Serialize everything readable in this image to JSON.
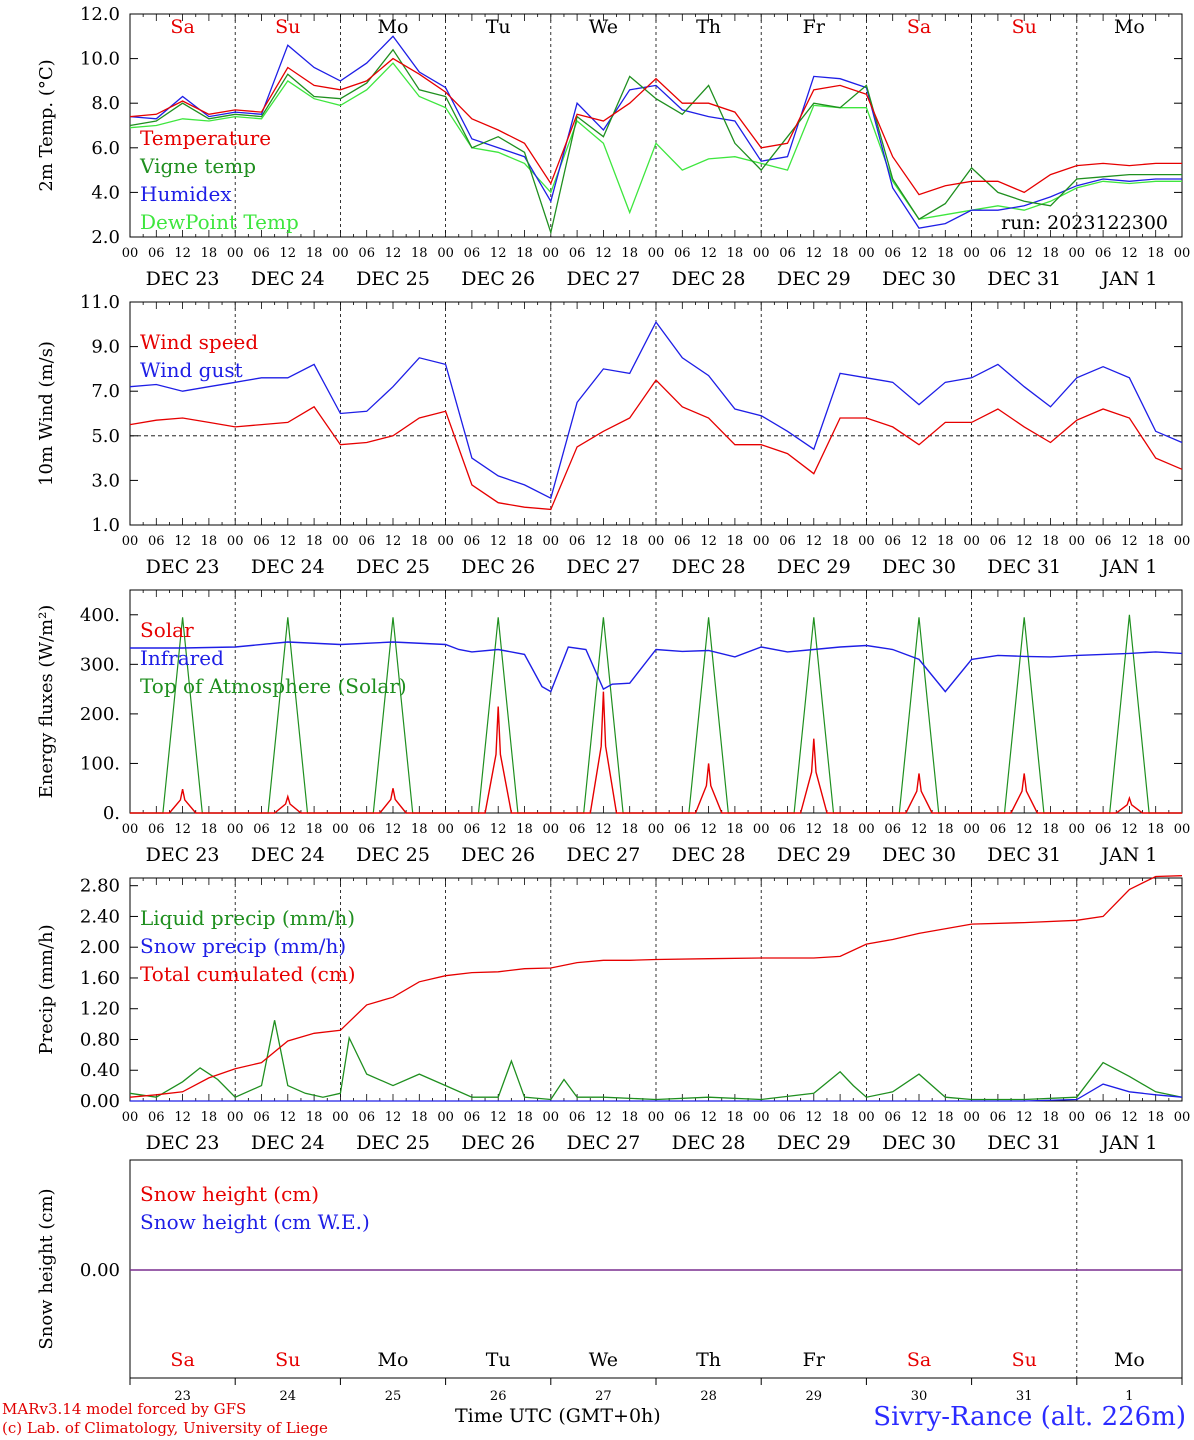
{
  "colors": {
    "red": "#e60000",
    "green": "#1f8f1f",
    "blue": "#1e1ee6",
    "lightgreen": "#3ee63e",
    "purple": "#7a2f8f"
  },
  "x_axis": {
    "hour_ticks": [
      "00",
      "06",
      "12",
      "18"
    ],
    "final_tick": "00",
    "dates": [
      "DEC 23",
      "DEC 24",
      "DEC 25",
      "DEC 26",
      "DEC 27",
      "DEC 28",
      "DEC 29",
      "DEC 30",
      "DEC 31",
      "JAN  1"
    ],
    "weekdays": [
      "Sa",
      "Su",
      "Mo",
      "Tu",
      "We",
      "Th",
      "Fr",
      "Sa",
      "Su",
      "Mo"
    ],
    "weekday_colors": [
      "red",
      "red",
      "black",
      "black",
      "black",
      "black",
      "black",
      "red",
      "red",
      "black"
    ],
    "day_numbers": [
      "23",
      "24",
      "25",
      "26",
      "27",
      "28",
      "29",
      "30",
      "31",
      "1"
    ]
  },
  "footer": {
    "credit_line1": "MARv3.14 model forced by GFS",
    "credit_line2": "(c) Lab. of Climatology, University of Liege",
    "time_label": "Time UTC (GMT+0h)",
    "station": "Sivry-Rance (alt. 226m)"
  },
  "chart_data": [
    {
      "type": "line",
      "ylabel": "2m Temp. (°C)",
      "ylim": [
        2.0,
        12.0
      ],
      "yticks": [
        "2.0",
        "4.0",
        "6.0",
        "8.0",
        "10.0",
        "12.0"
      ],
      "annotation": "run: 2023122300",
      "x_unit": "hours since DEC 23 00 UTC",
      "series": [
        {
          "name": "Temperature",
          "color": "red",
          "x": [
            0,
            6,
            12,
            18,
            24,
            30,
            36,
            42,
            48,
            54,
            60,
            66,
            72,
            78,
            84,
            90,
            96,
            102,
            108,
            114,
            120,
            126,
            132,
            138,
            144,
            150,
            156,
            162,
            168,
            174,
            180,
            186,
            192,
            198,
            204,
            210,
            216,
            222,
            228,
            234,
            240
          ],
          "values": [
            7.4,
            7.5,
            8.1,
            7.5,
            7.7,
            7.6,
            9.6,
            8.8,
            8.6,
            9.0,
            10.0,
            9.3,
            8.5,
            7.3,
            6.8,
            6.2,
            4.4,
            7.5,
            7.2,
            8.0,
            9.1,
            8.0,
            8.0,
            7.6,
            6.0,
            6.2,
            8.6,
            8.8,
            8.4,
            5.6,
            3.9,
            4.3,
            4.5,
            4.5,
            4.0,
            4.8,
            5.2,
            5.3,
            5.2,
            5.3,
            5.3
          ]
        },
        {
          "name": "Vigne temp",
          "color": "green",
          "x": [
            0,
            6,
            12,
            18,
            24,
            30,
            36,
            42,
            48,
            54,
            60,
            66,
            72,
            78,
            84,
            90,
            96,
            102,
            108,
            114,
            120,
            126,
            132,
            138,
            144,
            150,
            156,
            162,
            168,
            174,
            180,
            186,
            192,
            198,
            204,
            210,
            216,
            222,
            228,
            234,
            240
          ],
          "values": [
            7.0,
            7.2,
            8.0,
            7.3,
            7.5,
            7.4,
            9.3,
            8.3,
            8.2,
            8.9,
            10.4,
            8.6,
            8.3,
            6.0,
            6.5,
            5.8,
            2.2,
            7.4,
            6.5,
            9.2,
            8.2,
            7.5,
            8.8,
            6.2,
            5.0,
            6.5,
            8.0,
            7.8,
            8.8,
            4.6,
            2.8,
            3.5,
            5.1,
            4.0,
            3.6,
            3.4,
            4.6,
            4.7,
            4.8,
            4.8,
            4.8
          ]
        },
        {
          "name": "Humidex",
          "color": "blue",
          "x": [
            0,
            6,
            12,
            18,
            24,
            30,
            36,
            42,
            48,
            54,
            60,
            66,
            72,
            78,
            84,
            90,
            96,
            102,
            108,
            114,
            120,
            126,
            132,
            138,
            144,
            150,
            156,
            162,
            168,
            174,
            180,
            186,
            192,
            198,
            204,
            210,
            216,
            222,
            228,
            234,
            240
          ],
          "values": [
            7.4,
            7.3,
            8.3,
            7.4,
            7.6,
            7.5,
            10.6,
            9.6,
            9.0,
            9.8,
            11.0,
            9.4,
            8.7,
            6.4,
            6.0,
            5.6,
            3.6,
            8.0,
            6.8,
            8.6,
            8.8,
            7.7,
            7.4,
            7.2,
            5.4,
            5.6,
            9.2,
            9.1,
            8.7,
            4.2,
            2.4,
            2.6,
            3.2,
            3.2,
            3.4,
            3.8,
            4.3,
            4.6,
            4.5,
            4.6,
            4.6
          ]
        },
        {
          "name": "DewPoint Temp",
          "color": "lightgreen",
          "x": [
            0,
            6,
            12,
            18,
            24,
            30,
            36,
            42,
            48,
            54,
            60,
            66,
            72,
            78,
            84,
            90,
            96,
            102,
            108,
            114,
            120,
            126,
            132,
            138,
            144,
            150,
            156,
            162,
            168,
            174,
            180,
            186,
            192,
            198,
            204,
            210,
            216,
            222,
            228,
            234,
            240
          ],
          "values": [
            6.9,
            7.0,
            7.3,
            7.2,
            7.4,
            7.3,
            9.0,
            8.2,
            7.9,
            8.6,
            9.8,
            8.3,
            7.8,
            6.0,
            5.8,
            5.3,
            4.0,
            7.2,
            6.2,
            3.1,
            6.2,
            5.0,
            5.5,
            5.6,
            5.3,
            5.0,
            7.9,
            7.8,
            7.8,
            4.5,
            2.8,
            3.0,
            3.2,
            3.4,
            3.2,
            3.6,
            4.2,
            4.5,
            4.4,
            4.5,
            4.5
          ]
        }
      ]
    },
    {
      "type": "line",
      "ylabel": "10m Wind (m/s)",
      "ylim": [
        1.0,
        11.0
      ],
      "yticks": [
        "1.0",
        "3.0",
        "5.0",
        "7.0",
        "9.0",
        "11.0"
      ],
      "reference_line": 5.0,
      "x_unit": "hours since DEC 23 00 UTC",
      "series": [
        {
          "name": "Wind speed",
          "color": "red",
          "x": [
            0,
            6,
            12,
            18,
            24,
            30,
            36,
            42,
            48,
            54,
            60,
            66,
            72,
            78,
            84,
            90,
            96,
            102,
            108,
            114,
            120,
            126,
            132,
            138,
            144,
            150,
            156,
            162,
            168,
            174,
            180,
            186,
            192,
            198,
            204,
            210,
            216,
            222,
            228,
            234,
            240
          ],
          "values": [
            5.5,
            5.7,
            5.8,
            5.6,
            5.4,
            5.5,
            5.6,
            6.3,
            4.6,
            4.7,
            5.0,
            5.8,
            6.1,
            2.8,
            2.0,
            1.8,
            1.7,
            4.5,
            5.2,
            5.8,
            7.5,
            6.3,
            5.8,
            4.6,
            4.6,
            4.2,
            3.3,
            5.8,
            5.8,
            5.4,
            4.6,
            5.6,
            5.6,
            6.2,
            5.4,
            4.7,
            5.7,
            6.2,
            5.8,
            4.0,
            3.5
          ]
        },
        {
          "name": "Wind gust",
          "color": "blue",
          "x": [
            0,
            6,
            12,
            18,
            24,
            30,
            36,
            42,
            48,
            54,
            60,
            66,
            72,
            78,
            84,
            90,
            96,
            102,
            108,
            114,
            120,
            126,
            132,
            138,
            144,
            150,
            156,
            162,
            168,
            174,
            180,
            186,
            192,
            198,
            204,
            210,
            216,
            222,
            228,
            234,
            240
          ],
          "values": [
            7.2,
            7.3,
            7.0,
            7.2,
            7.4,
            7.6,
            7.6,
            8.2,
            6.0,
            6.1,
            7.2,
            8.5,
            8.2,
            4.0,
            3.2,
            2.8,
            2.2,
            6.5,
            8.0,
            7.8,
            10.1,
            8.5,
            7.7,
            6.2,
            5.9,
            5.2,
            4.4,
            7.8,
            7.6,
            7.4,
            6.4,
            7.4,
            7.6,
            8.2,
            7.2,
            6.3,
            7.6,
            8.1,
            7.6,
            5.2,
            4.7
          ]
        }
      ]
    },
    {
      "type": "line",
      "ylabel": "Energy fluxes (W/m²)",
      "ylim": [
        0,
        450
      ],
      "yticks": [
        "0.",
        "100.",
        "200.",
        "300.",
        "400."
      ],
      "x_unit": "hours since DEC 23 00 UTC",
      "series": [
        {
          "name": "Solar",
          "color": "red",
          "daily_peak": [
            48,
            33,
            50,
            215,
            245,
            100,
            150,
            80,
            80,
            30
          ]
        },
        {
          "name": "Infrared",
          "color": "blue",
          "x": [
            0,
            12,
            24,
            36,
            48,
            60,
            72,
            75,
            78,
            84,
            90,
            94,
            96,
            100,
            104,
            108,
            110,
            114,
            120,
            126,
            132,
            138,
            144,
            150,
            156,
            162,
            168,
            174,
            180,
            186,
            192,
            198,
            204,
            210,
            216,
            222,
            228,
            234,
            240
          ],
          "values": [
            333,
            333,
            335,
            345,
            340,
            345,
            340,
            330,
            325,
            330,
            320,
            255,
            245,
            335,
            330,
            250,
            260,
            262,
            330,
            326,
            328,
            315,
            335,
            325,
            330,
            335,
            338,
            330,
            310,
            245,
            310,
            318,
            316,
            315,
            318,
            320,
            322,
            325,
            322
          ]
        },
        {
          "name": "Top of Atmosphere (Solar)",
          "color": "green",
          "daily_peak": [
            395,
            395,
            395,
            395,
            395,
            395,
            395,
            395,
            395,
            400
          ]
        }
      ]
    },
    {
      "type": "line",
      "ylabel": "Precip (mm/h)",
      "ylim": [
        0.0,
        2.9
      ],
      "yticks": [
        "0.00",
        "0.40",
        "0.80",
        "1.20",
        "1.60",
        "2.00",
        "2.40",
        "2.80"
      ],
      "x_unit": "hours since DEC 23 00 UTC",
      "series": [
        {
          "name": "Liquid precip (mm/h)",
          "color": "green",
          "x": [
            0,
            6,
            12,
            16,
            20,
            24,
            30,
            33,
            36,
            40,
            44,
            48,
            50,
            54,
            60,
            66,
            72,
            78,
            84,
            87,
            90,
            96,
            99,
            102,
            108,
            120,
            132,
            144,
            156,
            162,
            165,
            168,
            174,
            180,
            186,
            192,
            198,
            204,
            216,
            222,
            228,
            234,
            240
          ],
          "values": [
            0.1,
            0.05,
            0.25,
            0.43,
            0.28,
            0.05,
            0.2,
            1.05,
            0.2,
            0.1,
            0.05,
            0.1,
            0.82,
            0.35,
            0.2,
            0.35,
            0.2,
            0.05,
            0.05,
            0.52,
            0.05,
            0.02,
            0.28,
            0.05,
            0.05,
            0.02,
            0.05,
            0.02,
            0.1,
            0.38,
            0.2,
            0.05,
            0.12,
            0.35,
            0.05,
            0.02,
            0.02,
            0.02,
            0.05,
            0.5,
            0.32,
            0.12,
            0.05
          ]
        },
        {
          "name": "Snow precip (mm/h)",
          "color": "blue",
          "x": [
            0,
            120,
            204,
            216,
            222,
            228,
            234,
            240
          ],
          "values": [
            0,
            0,
            0,
            0.02,
            0.22,
            0.12,
            0.08,
            0.05
          ]
        },
        {
          "name": "Total cumulated (cm)",
          "color": "red",
          "x": [
            0,
            6,
            12,
            18,
            24,
            30,
            36,
            42,
            48,
            54,
            60,
            66,
            72,
            78,
            84,
            90,
            96,
            102,
            108,
            114,
            120,
            132,
            144,
            156,
            162,
            168,
            174,
            180,
            192,
            204,
            216,
            222,
            228,
            234,
            240
          ],
          "values": [
            0.05,
            0.08,
            0.12,
            0.3,
            0.42,
            0.5,
            0.78,
            0.88,
            0.92,
            1.25,
            1.35,
            1.55,
            1.63,
            1.67,
            1.68,
            1.72,
            1.73,
            1.8,
            1.83,
            1.83,
            1.84,
            1.85,
            1.86,
            1.86,
            1.88,
            2.04,
            2.1,
            2.18,
            2.3,
            2.32,
            2.35,
            2.4,
            2.75,
            2.92,
            2.93
          ]
        }
      ]
    },
    {
      "type": "line",
      "ylabel": "Snow height (cm)",
      "yticks": [
        "0.00"
      ],
      "x_unit": "hours since DEC 23 00 UTC",
      "series": [
        {
          "name": "Snow height (cm)",
          "color": "red",
          "x": [
            0,
            240
          ],
          "values": [
            0,
            0
          ]
        },
        {
          "name": "Snow height (cm W.E.)",
          "color": "blue",
          "x": [
            0,
            240
          ],
          "values": [
            0,
            0
          ]
        }
      ]
    }
  ]
}
